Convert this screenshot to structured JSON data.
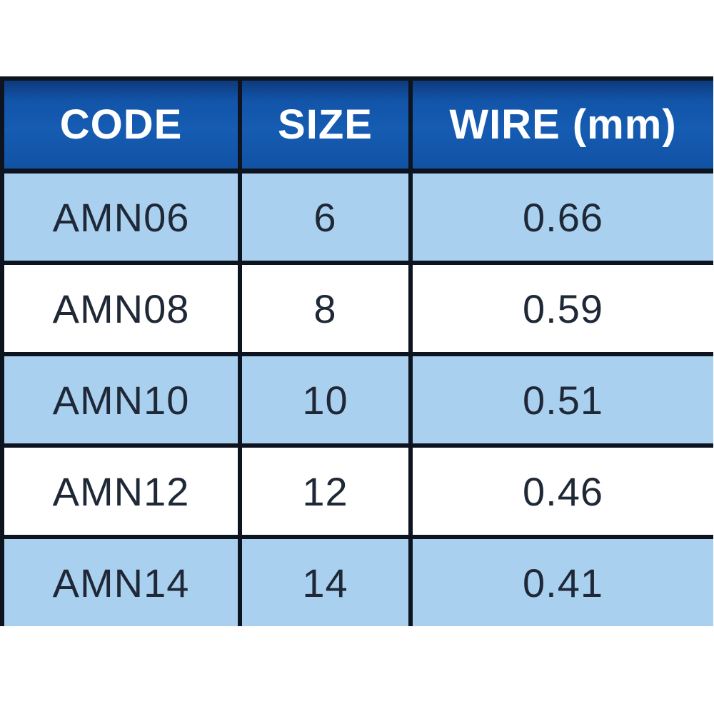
{
  "chart_data": {
    "type": "table",
    "columns": [
      "CODE",
      "SIZE",
      "WIRE (mm)"
    ],
    "rows": [
      [
        "AMN06",
        "6",
        "0.66"
      ],
      [
        "AMN08",
        "8",
        "0.59"
      ],
      [
        "AMN10",
        "10",
        "0.51"
      ],
      [
        "AMN12",
        "12",
        "0.46"
      ],
      [
        "AMN14",
        "14",
        "0.41"
      ]
    ],
    "layout": {
      "header_position": "top",
      "striped": true,
      "stripe_pattern": "odd-rows-light-blue"
    }
  },
  "colors": {
    "header_bg": "#1254a8",
    "header_text": "#ffffff",
    "row_alt_bg": "#aad0f0",
    "row_plain_bg": "#ffffff",
    "border": "#0d1420",
    "cell_text": "#1f2836"
  }
}
